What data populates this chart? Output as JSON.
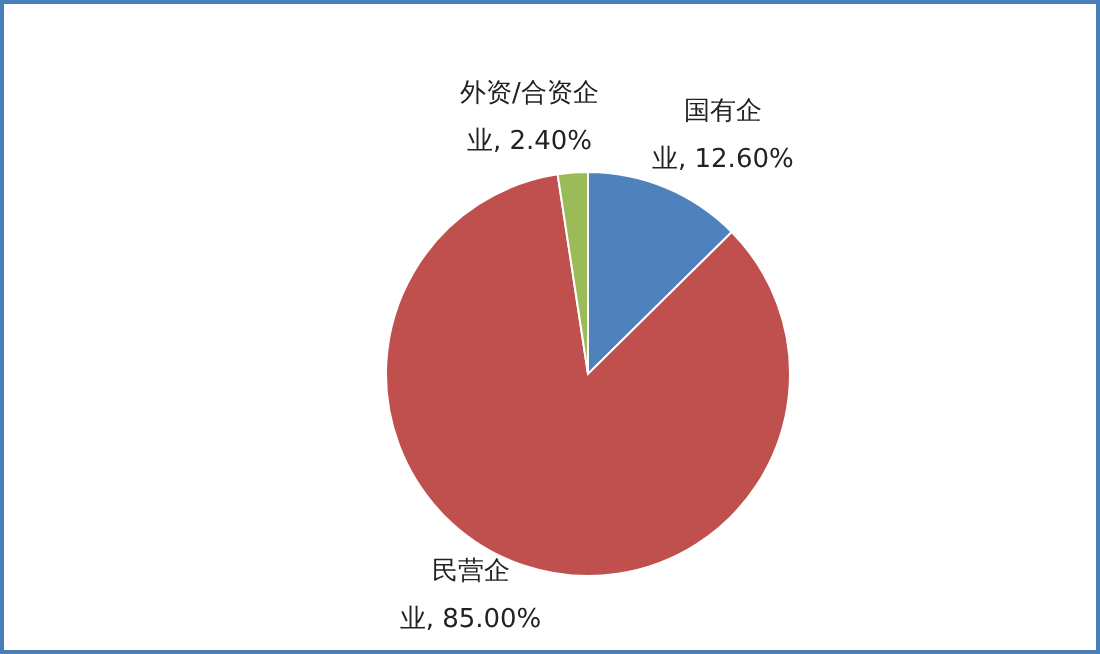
{
  "chart_data": {
    "type": "pie",
    "categories": [
      "国有企业",
      "民营企业",
      "外资/合资企业"
    ],
    "values": [
      12.6,
      85.0,
      2.4
    ],
    "colors": [
      "#4f81bd",
      "#c0504d",
      "#9bbb59"
    ],
    "value_labels": [
      "12.60%",
      "85.00%",
      "2.40%"
    ],
    "legend": false
  }
}
